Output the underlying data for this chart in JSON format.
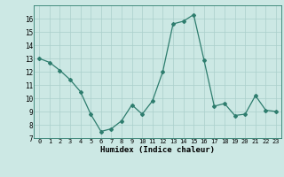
{
  "x": [
    0,
    1,
    2,
    3,
    4,
    5,
    6,
    7,
    8,
    9,
    10,
    11,
    12,
    13,
    14,
    15,
    16,
    17,
    18,
    19,
    20,
    21,
    22,
    23
  ],
  "y": [
    13.0,
    12.7,
    12.1,
    11.4,
    10.5,
    8.8,
    7.5,
    7.7,
    8.3,
    9.5,
    8.8,
    9.8,
    12.0,
    15.6,
    15.8,
    16.3,
    12.9,
    9.4,
    9.6,
    8.7,
    8.8,
    10.2,
    9.1,
    9.0
  ],
  "xlabel": "Humidex (Indice chaleur)",
  "ylim": [
    7,
    17
  ],
  "yticks": [
    7,
    8,
    9,
    10,
    11,
    12,
    13,
    14,
    15,
    16
  ],
  "xticks": [
    0,
    1,
    2,
    3,
    4,
    5,
    6,
    7,
    8,
    9,
    10,
    11,
    12,
    13,
    14,
    15,
    16,
    17,
    18,
    19,
    20,
    21,
    22,
    23
  ],
  "line_color": "#2e7d6e",
  "marker": "D",
  "marker_size": 2.0,
  "bg_color": "#cce8e4",
  "grid_color": "#aacfcb",
  "spine_color": "#2e7d6e"
}
